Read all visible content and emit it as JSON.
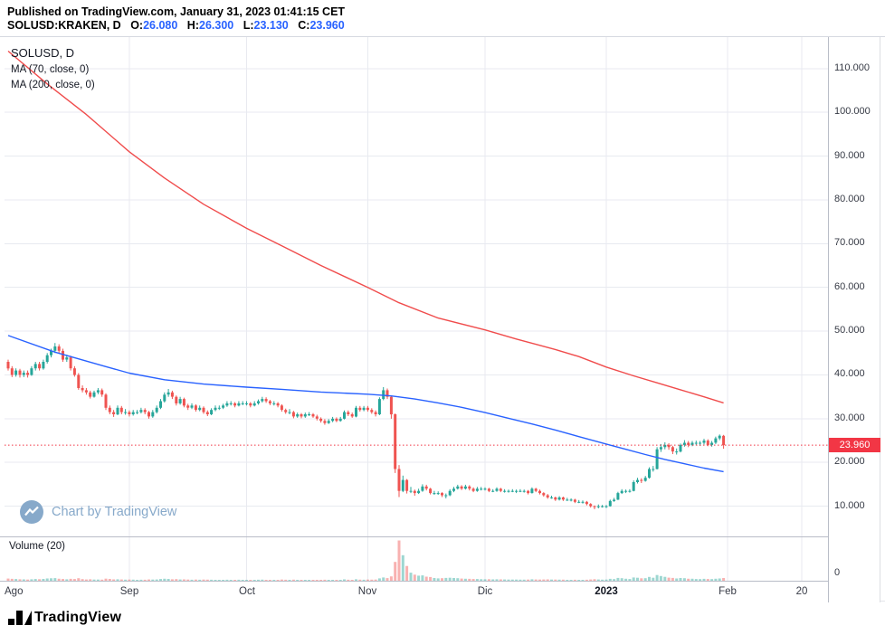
{
  "header": {
    "published_line": "Published on TradingView.com, January 31, 2023 01:41:15 CET",
    "symbol": "SOLUSD:KRAKEN, D",
    "ohlc": [
      {
        "label": "O:",
        "value": "26.080"
      },
      {
        "label": "H:",
        "value": "26.300"
      },
      {
        "label": "L:",
        "value": "23.130"
      },
      {
        "label": "C:",
        "value": "23.960"
      }
    ]
  },
  "legend": {
    "title": "SOLUSD, D",
    "ma_fast": "MA (70, close, 0)",
    "ma_slow": "MA (200, close, 0)"
  },
  "watermark": {
    "text": "Chart by TradingView"
  },
  "volume": {
    "label": "Volume (20)",
    "zero_label": "0"
  },
  "price_label": {
    "text": "23.960"
  },
  "footer": {
    "brand": "TradingView"
  },
  "colors": {
    "up": "#26a69a",
    "down": "#ef5350",
    "up_vol": "rgba(38,166,154,0.45)",
    "down_vol": "rgba(239,83,80,0.45)",
    "ma70": "#2962ff",
    "ma200": "#f04c4c",
    "last": "#f23645",
    "tag_bg": "#f23645",
    "grid": "#e8eaf0",
    "axis_text": "#363a45",
    "header_value": "#2962ff",
    "watermark": "#87a9ca"
  },
  "chart_data": {
    "type": "candlestick",
    "symbol": "SOLUSD",
    "exchange": "KRAKEN",
    "interval": "D",
    "last_price": 23.96,
    "price_range": [
      3.1,
      117.2
    ],
    "price_ticks": [
      110,
      100,
      90,
      80,
      70,
      60,
      50,
      40,
      30,
      20,
      10
    ],
    "time_ticks": [
      {
        "index": 0,
        "label": "Ago",
        "grid": false,
        "first": true
      },
      {
        "index": 31,
        "label": "Sep",
        "grid": true
      },
      {
        "index": 61,
        "label": "Oct",
        "grid": true
      },
      {
        "index": 92,
        "label": "Nov",
        "grid": true
      },
      {
        "index": 122,
        "label": "Dic",
        "grid": true
      },
      {
        "index": 153,
        "label": "2023",
        "grid": true,
        "bold": true
      },
      {
        "index": 184,
        "label": "Feb",
        "grid": true
      },
      {
        "index": 203,
        "label": "20",
        "grid": true
      }
    ],
    "volume_max": 62,
    "ma70": [
      [
        0,
        49.0
      ],
      [
        12,
        45.2
      ],
      [
        25,
        41.9
      ],
      [
        31,
        40.4
      ],
      [
        40,
        38.9
      ],
      [
        50,
        37.9
      ],
      [
        61,
        37.2
      ],
      [
        70,
        36.7
      ],
      [
        80,
        36.1
      ],
      [
        92,
        35.6
      ],
      [
        98,
        35.2
      ],
      [
        104,
        34.5
      ],
      [
        110,
        33.6
      ],
      [
        116,
        32.6
      ],
      [
        122,
        31.4
      ],
      [
        128,
        30.1
      ],
      [
        134,
        28.8
      ],
      [
        140,
        27.4
      ],
      [
        146,
        25.9
      ],
      [
        153,
        24.2
      ],
      [
        158,
        23.0
      ],
      [
        163,
        21.8
      ],
      [
        168,
        20.7
      ],
      [
        173,
        19.7
      ],
      [
        178,
        18.7
      ],
      [
        183,
        17.9
      ]
    ],
    "ma200": [
      [
        0,
        114.0
      ],
      [
        10,
        106.5
      ],
      [
        20,
        99.5
      ],
      [
        31,
        91.0
      ],
      [
        40,
        85.0
      ],
      [
        50,
        79.0
      ],
      [
        61,
        73.5
      ],
      [
        70,
        69.5
      ],
      [
        80,
        65.0
      ],
      [
        92,
        60.0
      ],
      [
        100,
        56.5
      ],
      [
        110,
        53.0
      ],
      [
        122,
        50.3
      ],
      [
        130,
        48.2
      ],
      [
        140,
        45.8
      ],
      [
        146,
        44.2
      ],
      [
        153,
        41.8
      ],
      [
        160,
        39.8
      ],
      [
        166,
        38.2
      ],
      [
        172,
        36.6
      ],
      [
        178,
        35.0
      ],
      [
        183,
        33.6
      ]
    ],
    "candles": [
      [
        43.0,
        43.5,
        41.0,
        41.5,
        3.2
      ],
      [
        41.5,
        42.0,
        39.5,
        40.0,
        2.8
      ],
      [
        40.0,
        41.5,
        39.6,
        41.0,
        2.5
      ],
      [
        41.0,
        41.4,
        39.4,
        40.0,
        2.2
      ],
      [
        40.0,
        41.0,
        39.5,
        40.5,
        2.0
      ],
      [
        40.5,
        41.0,
        39.4,
        40.0,
        1.8
      ],
      [
        40.0,
        42.0,
        39.8,
        41.5,
        2.1
      ],
      [
        41.5,
        43.0,
        41.0,
        42.5,
        2.6
      ],
      [
        42.5,
        43.0,
        41.0,
        41.5,
        2.3
      ],
      [
        41.5,
        43.5,
        41.2,
        43.0,
        2.7
      ],
      [
        43.0,
        45.0,
        42.6,
        44.5,
        3.4
      ],
      [
        44.5,
        46.0,
        44.0,
        45.5,
        3.6
      ],
      [
        45.5,
        47.3,
        45.0,
        46.5,
        3.9
      ],
      [
        46.5,
        47.0,
        44.9,
        45.5,
        2.9
      ],
      [
        45.5,
        46.0,
        43.0,
        43.5,
        2.6
      ],
      [
        43.5,
        44.6,
        43.0,
        44.0,
        2.2
      ],
      [
        44.0,
        44.4,
        41.0,
        41.5,
        2.8
      ],
      [
        41.5,
        42.0,
        39.6,
        40.0,
        2.5
      ],
      [
        40.0,
        40.4,
        36.6,
        37.0,
        3.8
      ],
      [
        37.0,
        37.6,
        36.0,
        36.5,
        2.4
      ],
      [
        36.5,
        37.0,
        35.5,
        36.0,
        1.9
      ],
      [
        36.0,
        36.4,
        34.6,
        35.0,
        2.1
      ],
      [
        35.0,
        36.4,
        34.8,
        36.0,
        1.8
      ],
      [
        36.0,
        37.0,
        35.6,
        36.5,
        1.7
      ],
      [
        36.5,
        36.9,
        35.0,
        35.5,
        1.6
      ],
      [
        35.5,
        35.8,
        32.0,
        32.5,
        3.1
      ],
      [
        32.5,
        33.0,
        31.0,
        31.5,
        2.7
      ],
      [
        31.5,
        32.0,
        30.4,
        31.0,
        2.0
      ],
      [
        31.0,
        33.0,
        30.8,
        32.5,
        2.2
      ],
      [
        32.5,
        32.9,
        31.0,
        31.5,
        1.9
      ],
      [
        31.5,
        32.2,
        30.9,
        31.5,
        1.6
      ],
      [
        31.5,
        31.9,
        30.5,
        31.0,
        1.8
      ],
      [
        31.0,
        32.0,
        30.7,
        31.5,
        1.6
      ],
      [
        31.5,
        32.0,
        31.0,
        31.5,
        1.4
      ],
      [
        31.5,
        32.5,
        31.2,
        32.0,
        1.5
      ],
      [
        32.0,
        32.4,
        31.0,
        31.5,
        1.5
      ],
      [
        31.5,
        31.8,
        30.0,
        30.5,
        1.9
      ],
      [
        30.5,
        32.0,
        30.2,
        31.5,
        1.7
      ],
      [
        31.5,
        33.0,
        31.2,
        32.5,
        1.9
      ],
      [
        32.5,
        34.5,
        32.2,
        34.0,
        2.6
      ],
      [
        34.0,
        36.0,
        33.7,
        35.5,
        2.9
      ],
      [
        35.5,
        36.8,
        35.0,
        36.0,
        2.7
      ],
      [
        36.0,
        36.4,
        34.5,
        35.0,
        2.2
      ],
      [
        35.0,
        35.3,
        33.0,
        33.5,
        2.4
      ],
      [
        33.5,
        35.0,
        33.2,
        34.5,
        1.9
      ],
      [
        34.5,
        34.8,
        32.6,
        33.0,
        2.0
      ],
      [
        33.0,
        33.4,
        32.0,
        32.5,
        1.7
      ],
      [
        32.5,
        33.5,
        32.2,
        33.0,
        1.5
      ],
      [
        33.0,
        33.3,
        31.6,
        32.0,
        1.8
      ],
      [
        32.0,
        33.0,
        31.7,
        32.5,
        1.5
      ],
      [
        32.5,
        32.8,
        31.1,
        31.5,
        1.7
      ],
      [
        31.5,
        31.9,
        30.6,
        31.0,
        1.6
      ],
      [
        31.0,
        32.4,
        30.8,
        32.0,
        1.5
      ],
      [
        32.0,
        33.0,
        31.7,
        32.5,
        1.4
      ],
      [
        32.5,
        33.0,
        32.0,
        32.5,
        1.3
      ],
      [
        32.5,
        33.4,
        32.2,
        33.0,
        1.4
      ],
      [
        33.0,
        34.0,
        32.7,
        33.5,
        1.5
      ],
      [
        33.5,
        34.0,
        33.0,
        33.5,
        1.3
      ],
      [
        33.5,
        33.8,
        32.6,
        33.0,
        1.4
      ],
      [
        33.0,
        34.0,
        32.8,
        33.5,
        1.5
      ],
      [
        33.5,
        34.0,
        33.1,
        33.5,
        1.3
      ],
      [
        33.5,
        34.0,
        33.0,
        33.5,
        1.2
      ],
      [
        33.5,
        33.8,
        32.6,
        33.0,
        1.3
      ],
      [
        33.0,
        34.0,
        32.8,
        33.5,
        1.4
      ],
      [
        33.5,
        34.4,
        33.2,
        34.0,
        1.5
      ],
      [
        34.0,
        35.0,
        33.7,
        34.5,
        1.6
      ],
      [
        34.5,
        34.9,
        33.6,
        34.0,
        1.4
      ],
      [
        34.0,
        34.3,
        33.1,
        33.5,
        1.3
      ],
      [
        33.5,
        34.0,
        33.0,
        33.5,
        1.2
      ],
      [
        33.5,
        33.8,
        32.6,
        33.0,
        1.3
      ],
      [
        33.0,
        33.3,
        31.6,
        32.0,
        1.7
      ],
      [
        32.0,
        32.3,
        31.1,
        31.5,
        1.5
      ],
      [
        31.5,
        32.2,
        31.0,
        31.5,
        1.3
      ],
      [
        31.5,
        31.8,
        30.1,
        30.5,
        1.6
      ],
      [
        30.5,
        31.4,
        30.2,
        31.0,
        1.3
      ],
      [
        31.0,
        31.3,
        30.1,
        30.5,
        1.2
      ],
      [
        30.5,
        31.4,
        30.2,
        31.0,
        1.2
      ],
      [
        31.0,
        31.5,
        30.6,
        31.0,
        1.1
      ],
      [
        31.0,
        31.3,
        30.2,
        30.5,
        1.2
      ],
      [
        30.5,
        30.9,
        29.6,
        30.0,
        1.3
      ],
      [
        30.0,
        30.3,
        29.1,
        29.5,
        1.4
      ],
      [
        29.5,
        29.9,
        28.6,
        29.0,
        1.5
      ],
      [
        29.0,
        29.9,
        28.8,
        29.5,
        1.3
      ],
      [
        29.5,
        30.4,
        29.2,
        30.0,
        1.4
      ],
      [
        30.0,
        30.3,
        29.2,
        29.5,
        1.2
      ],
      [
        29.5,
        30.4,
        29.3,
        30.0,
        1.3
      ],
      [
        30.0,
        31.9,
        29.8,
        31.5,
        2.0
      ],
      [
        31.5,
        31.9,
        30.6,
        31.0,
        1.5
      ],
      [
        31.0,
        31.4,
        30.2,
        30.5,
        1.4
      ],
      [
        30.5,
        32.9,
        30.3,
        32.5,
        2.2
      ],
      [
        32.5,
        32.9,
        31.6,
        32.0,
        1.6
      ],
      [
        32.0,
        32.9,
        31.7,
        32.5,
        1.5
      ],
      [
        32.5,
        32.9,
        31.6,
        32.0,
        1.7
      ],
      [
        32.0,
        32.4,
        31.1,
        31.5,
        1.6
      ],
      [
        31.5,
        31.9,
        30.5,
        31.0,
        1.8
      ],
      [
        31.0,
        34.9,
        30.8,
        34.5,
        3.5
      ],
      [
        34.5,
        37.2,
        34.2,
        36.5,
        4.8
      ],
      [
        36.5,
        36.9,
        34.5,
        35.0,
        3.9
      ],
      [
        35.0,
        35.2,
        30.0,
        31.0,
        6.5
      ],
      [
        31.0,
        31.2,
        17.6,
        18.5,
        28.0
      ],
      [
        18.5,
        19.4,
        12.1,
        13.5,
        60.0
      ],
      [
        13.5,
        17.0,
        13.2,
        16.0,
        38.0
      ],
      [
        16.0,
        16.2,
        12.9,
        13.5,
        22.0
      ],
      [
        13.5,
        14.4,
        13.0,
        13.5,
        12.0
      ],
      [
        13.5,
        13.8,
        12.4,
        13.0,
        9.0
      ],
      [
        13.0,
        14.0,
        12.8,
        13.5,
        7.5
      ],
      [
        13.5,
        15.0,
        13.3,
        14.5,
        8.0
      ],
      [
        14.5,
        14.9,
        13.6,
        14.0,
        6.0
      ],
      [
        14.0,
        14.2,
        12.7,
        13.0,
        5.5
      ],
      [
        13.0,
        13.5,
        12.6,
        13.0,
        4.0
      ],
      [
        13.0,
        13.4,
        12.6,
        13.0,
        3.5
      ],
      [
        13.0,
        13.2,
        12.1,
        12.5,
        3.8
      ],
      [
        12.5,
        12.9,
        11.8,
        12.5,
        4.2
      ],
      [
        12.5,
        13.9,
        12.3,
        13.5,
        4.5
      ],
      [
        13.5,
        14.4,
        13.2,
        14.0,
        4.0
      ],
      [
        14.0,
        14.9,
        13.8,
        14.5,
        3.8
      ],
      [
        14.5,
        14.8,
        13.7,
        14.0,
        3.2
      ],
      [
        14.0,
        14.9,
        13.8,
        14.5,
        3.0
      ],
      [
        14.5,
        14.8,
        13.6,
        14.0,
        2.8
      ],
      [
        14.0,
        14.3,
        13.2,
        13.5,
        2.6
      ],
      [
        13.5,
        14.4,
        13.3,
        14.0,
        2.5
      ],
      [
        14.0,
        14.4,
        13.6,
        14.0,
        2.3
      ],
      [
        14.0,
        14.3,
        13.6,
        14.0,
        2.2
      ],
      [
        14.0,
        14.2,
        13.2,
        13.5,
        2.3
      ],
      [
        13.5,
        13.9,
        13.2,
        13.5,
        2.0
      ],
      [
        13.5,
        14.3,
        13.3,
        14.0,
        2.1
      ],
      [
        14.0,
        14.2,
        13.2,
        13.5,
        2.0
      ],
      [
        13.5,
        13.9,
        13.1,
        13.5,
        1.9
      ],
      [
        13.5,
        13.8,
        13.1,
        13.5,
        1.8
      ],
      [
        13.5,
        13.9,
        13.2,
        13.5,
        1.7
      ],
      [
        13.5,
        13.8,
        13.0,
        13.5,
        1.8
      ],
      [
        13.5,
        13.9,
        13.2,
        13.5,
        1.6
      ],
      [
        13.5,
        13.8,
        13.1,
        13.5,
        1.6
      ],
      [
        13.5,
        13.7,
        12.7,
        13.0,
        1.8
      ],
      [
        13.0,
        14.3,
        12.9,
        14.0,
        2.2
      ],
      [
        14.0,
        14.2,
        13.2,
        13.5,
        1.9
      ],
      [
        13.5,
        13.8,
        12.7,
        13.0,
        1.8
      ],
      [
        13.0,
        13.2,
        12.2,
        12.5,
        1.9
      ],
      [
        12.5,
        12.8,
        11.7,
        12.0,
        2.0
      ],
      [
        12.0,
        12.4,
        11.7,
        12.0,
        1.7
      ],
      [
        12.0,
        12.2,
        11.2,
        11.5,
        1.8
      ],
      [
        11.5,
        12.3,
        11.3,
        12.0,
        1.6
      ],
      [
        12.0,
        12.2,
        11.2,
        11.5,
        1.6
      ],
      [
        11.5,
        11.9,
        11.2,
        11.5,
        1.4
      ],
      [
        11.5,
        11.8,
        11.1,
        11.5,
        1.3
      ],
      [
        11.5,
        11.7,
        10.7,
        11.0,
        1.5
      ],
      [
        11.0,
        11.4,
        10.7,
        11.0,
        1.3
      ],
      [
        11.0,
        11.3,
        10.6,
        11.0,
        1.2
      ],
      [
        11.0,
        11.2,
        10.2,
        10.5,
        1.5
      ],
      [
        10.5,
        10.7,
        9.7,
        10.0,
        1.9
      ],
      [
        10.0,
        10.2,
        9.3,
        9.8,
        2.3
      ],
      [
        9.8,
        10.4,
        9.5,
        10.0,
        1.9
      ],
      [
        10.0,
        10.3,
        9.7,
        10.0,
        1.6
      ],
      [
        10.0,
        10.3,
        9.6,
        10.0,
        1.7
      ],
      [
        10.0,
        11.5,
        9.9,
        11.2,
        2.8
      ],
      [
        11.2,
        11.9,
        11.0,
        11.5,
        2.4
      ],
      [
        11.5,
        13.3,
        11.4,
        13.0,
        4.2
      ],
      [
        13.0,
        13.9,
        12.8,
        13.5,
        3.8
      ],
      [
        13.5,
        13.8,
        13.0,
        13.5,
        2.9
      ],
      [
        13.5,
        13.9,
        13.1,
        13.5,
        2.6
      ],
      [
        13.5,
        15.9,
        13.4,
        15.5,
        4.8
      ],
      [
        15.5,
        16.5,
        15.2,
        16.0,
        4.5
      ],
      [
        16.0,
        16.4,
        15.3,
        15.8,
        3.6
      ],
      [
        15.8,
        16.9,
        15.6,
        16.5,
        3.8
      ],
      [
        16.5,
        18.9,
        16.3,
        18.5,
        5.6
      ],
      [
        18.5,
        19.2,
        17.9,
        18.5,
        4.4
      ],
      [
        18.5,
        23.5,
        18.4,
        23.0,
        8.5
      ],
      [
        23.0,
        24.2,
        22.4,
        23.5,
        7.0
      ],
      [
        23.5,
        24.6,
        23.0,
        24.0,
        5.8
      ],
      [
        24.0,
        24.4,
        22.9,
        23.5,
        4.6
      ],
      [
        23.5,
        23.8,
        21.9,
        22.5,
        4.2
      ],
      [
        22.5,
        23.2,
        21.8,
        22.5,
        3.4
      ],
      [
        22.5,
        24.3,
        22.3,
        24.0,
        4.0
      ],
      [
        24.0,
        25.1,
        23.6,
        24.5,
        3.8
      ],
      [
        24.5,
        24.9,
        23.5,
        24.0,
        3.0
      ],
      [
        24.0,
        24.9,
        23.7,
        24.5,
        2.9
      ],
      [
        24.5,
        25.0,
        23.9,
        24.5,
        2.6
      ],
      [
        24.5,
        24.9,
        23.8,
        24.5,
        2.4
      ],
      [
        24.5,
        25.4,
        24.1,
        25.0,
        2.8
      ],
      [
        25.0,
        25.3,
        23.7,
        24.0,
        2.6
      ],
      [
        24.0,
        24.9,
        23.6,
        24.5,
        2.4
      ],
      [
        24.5,
        25.9,
        24.2,
        25.5,
        3.0
      ],
      [
        25.5,
        26.4,
        25.1,
        26.1,
        3.4
      ],
      [
        26.08,
        26.3,
        23.13,
        23.96,
        4.1
      ]
    ]
  }
}
